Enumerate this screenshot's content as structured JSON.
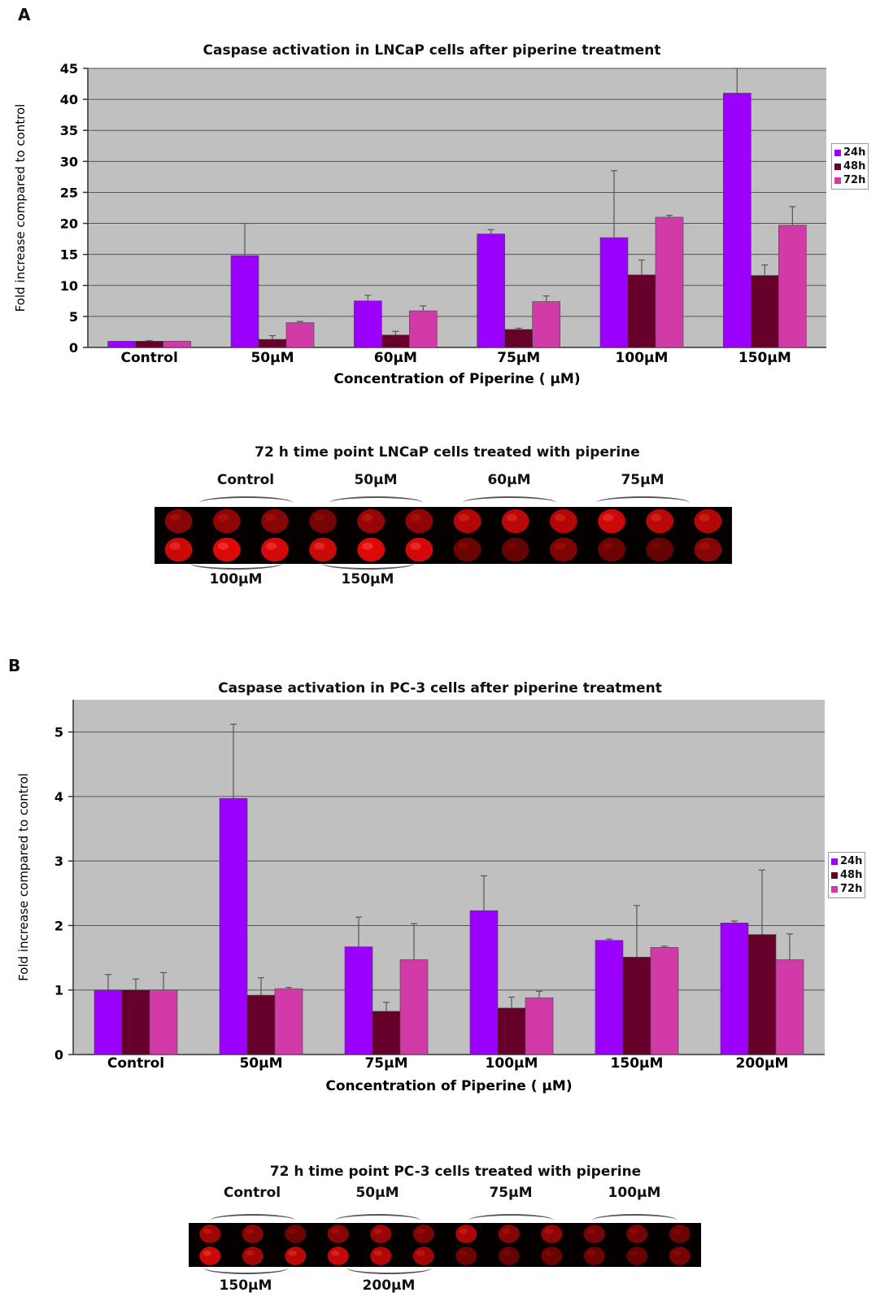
{
  "panel_a": {
    "letter": "A",
    "gel_title": "72 h time point LNCaP cells treated with piperine",
    "gel_top_labels": [
      "Control",
      "50μM",
      "60μM",
      "75μM"
    ],
    "gel_bottom_labels": [
      "100μM",
      "150μM"
    ]
  },
  "panel_b": {
    "letter": "B",
    "gel_title": "72 h time point PC-3 cells treated with piperine",
    "gel_top_labels": [
      "Control",
      "50μM",
      "75μM",
      "100μM"
    ],
    "gel_bottom_labels": [
      "150μM",
      "200μM"
    ]
  },
  "colors": {
    "h24": "#9b00ff",
    "h48": "#66002b",
    "h72": "#d23aa8",
    "plot_bg": "#c0c0c0"
  },
  "chart_data": [
    {
      "type": "bar",
      "title": "Caspase activation in LNCaP cells after piperine treatment",
      "xlabel": "Concentration of Piperine ( μM)",
      "ylabel": "Fold increase compared to control",
      "ylim": [
        0,
        45
      ],
      "yticks": [
        0,
        5,
        10,
        15,
        20,
        25,
        30,
        35,
        40,
        45
      ],
      "categories": [
        "Control",
        "50μM",
        "60μM",
        "75μM",
        "100μM",
        "150μM"
      ],
      "series": [
        {
          "name": "24h",
          "values": [
            1,
            14.8,
            7.5,
            18.3,
            17.7,
            41
          ],
          "errors": [
            0,
            5.2,
            0.9,
            0.7,
            10.8,
            4
          ]
        },
        {
          "name": "48h",
          "values": [
            1,
            1.3,
            2,
            2.9,
            11.7,
            11.6
          ],
          "errors": [
            0.1,
            0.6,
            0.6,
            0.2,
            2.4,
            1.7
          ]
        },
        {
          "name": "72h",
          "values": [
            1,
            4,
            5.9,
            7.4,
            21,
            19.7
          ],
          "errors": [
            0,
            0.2,
            0.8,
            0.9,
            0.3,
            3
          ]
        }
      ],
      "legend": "right"
    },
    {
      "type": "bar",
      "title": "Caspase activation in PC-3 cells after piperine treatment",
      "xlabel": "Concentration of Piperine ( μM)",
      "ylabel": "Fold increase compared to control",
      "ylim": [
        0,
        5.5
      ],
      "yticks": [
        0,
        1,
        2,
        3,
        4,
        5
      ],
      "categories": [
        "Control",
        "50μM",
        "75μM",
        "100μM",
        "150μM",
        "200μM"
      ],
      "series": [
        {
          "name": "24h",
          "values": [
            1,
            3.97,
            1.67,
            2.23,
            1.77,
            2.04
          ],
          "errors": [
            0.24,
            1.15,
            0.46,
            0.54,
            0.02,
            0.03
          ]
        },
        {
          "name": "48h",
          "values": [
            1,
            0.92,
            0.67,
            0.72,
            1.51,
            1.86
          ],
          "errors": [
            0.17,
            0.27,
            0.14,
            0.17,
            0.8,
            1
          ]
        },
        {
          "name": "72h",
          "values": [
            1,
            1.02,
            1.47,
            0.88,
            1.66,
            1.47
          ],
          "errors": [
            0.27,
            0.02,
            0.56,
            0.1,
            0.02,
            0.4
          ]
        }
      ],
      "legend": "right"
    }
  ]
}
